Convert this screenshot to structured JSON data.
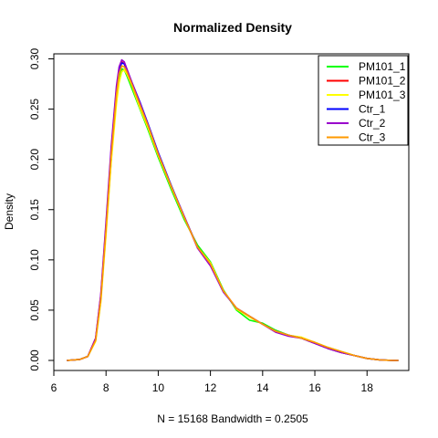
{
  "chart_data": {
    "type": "line",
    "title": "Normalized Density",
    "xlabel": "N = 15168   Bandwidth = 0.2505",
    "ylabel": "Density",
    "xlim": [
      6,
      19.6
    ],
    "ylim": [
      -0.01,
      0.305
    ],
    "x_ticks": [
      "6",
      "8",
      "10",
      "12",
      "14",
      "16",
      "18"
    ],
    "y_ticks": [
      "0.00",
      "0.05",
      "0.10",
      "0.15",
      "0.20",
      "0.25",
      "0.30"
    ],
    "grid": false,
    "legend_position": "top-right",
    "x": [
      6.5,
      7.0,
      7.3,
      7.6,
      7.8,
      8.0,
      8.2,
      8.4,
      8.5,
      8.6,
      8.7,
      8.8,
      9.0,
      9.3,
      9.6,
      10.0,
      10.5,
      11.0,
      11.5,
      12.0,
      12.5,
      13.0,
      13.5,
      14.0,
      14.5,
      15.0,
      15.5,
      16.0,
      16.5,
      17.0,
      17.5,
      18.0,
      18.5,
      19.0,
      19.2
    ],
    "series": [
      {
        "name": "PM101_1",
        "color": "#00ff00",
        "values": [
          0.0,
          0.001,
          0.004,
          0.02,
          0.06,
          0.13,
          0.2,
          0.26,
          0.282,
          0.29,
          0.289,
          0.283,
          0.27,
          0.25,
          0.23,
          0.202,
          0.17,
          0.14,
          0.115,
          0.098,
          0.07,
          0.05,
          0.04,
          0.037,
          0.03,
          0.025,
          0.022,
          0.018,
          0.013,
          0.009,
          0.005,
          0.002,
          0.0005,
          0.0,
          0.0
        ]
      },
      {
        "name": "PM101_2",
        "color": "#ff0000",
        "values": [
          0.0,
          0.001,
          0.004,
          0.022,
          0.065,
          0.135,
          0.21,
          0.27,
          0.29,
          0.297,
          0.295,
          0.288,
          0.274,
          0.254,
          0.233,
          0.205,
          0.173,
          0.143,
          0.113,
          0.096,
          0.069,
          0.052,
          0.044,
          0.036,
          0.029,
          0.025,
          0.022,
          0.017,
          0.012,
          0.008,
          0.005,
          0.002,
          0.0005,
          0.0,
          0.0
        ]
      },
      {
        "name": "PM101_3",
        "color": "#ffff00",
        "values": [
          0.0,
          0.001,
          0.004,
          0.019,
          0.058,
          0.125,
          0.198,
          0.255,
          0.276,
          0.287,
          0.289,
          0.285,
          0.273,
          0.251,
          0.232,
          0.204,
          0.172,
          0.142,
          0.113,
          0.097,
          0.069,
          0.051,
          0.043,
          0.036,
          0.029,
          0.025,
          0.023,
          0.018,
          0.013,
          0.009,
          0.005,
          0.002,
          0.0005,
          0.0,
          0.0
        ]
      },
      {
        "name": "Ctr_1",
        "color": "#0000ff",
        "values": [
          0.0,
          0.001,
          0.004,
          0.021,
          0.062,
          0.133,
          0.207,
          0.268,
          0.288,
          0.296,
          0.295,
          0.289,
          0.276,
          0.257,
          0.236,
          0.207,
          0.174,
          0.143,
          0.113,
          0.095,
          0.068,
          0.052,
          0.044,
          0.036,
          0.029,
          0.025,
          0.022,
          0.017,
          0.012,
          0.008,
          0.005,
          0.002,
          0.0005,
          0.0,
          0.0
        ]
      },
      {
        "name": "Ctr_2",
        "color": "#9900cc",
        "values": [
          0.0,
          0.001,
          0.004,
          0.022,
          0.066,
          0.138,
          0.213,
          0.273,
          0.292,
          0.299,
          0.297,
          0.29,
          0.276,
          0.256,
          0.235,
          0.206,
          0.173,
          0.143,
          0.112,
          0.094,
          0.068,
          0.052,
          0.044,
          0.036,
          0.028,
          0.024,
          0.022,
          0.017,
          0.012,
          0.008,
          0.005,
          0.002,
          0.0005,
          0.0,
          0.0
        ]
      },
      {
        "name": "Ctr_3",
        "color": "#ff9900",
        "values": [
          0.0,
          0.001,
          0.004,
          0.02,
          0.061,
          0.13,
          0.204,
          0.264,
          0.285,
          0.293,
          0.292,
          0.287,
          0.274,
          0.254,
          0.234,
          0.205,
          0.173,
          0.142,
          0.113,
          0.096,
          0.069,
          0.052,
          0.044,
          0.036,
          0.029,
          0.025,
          0.022,
          0.018,
          0.013,
          0.009,
          0.005,
          0.002,
          0.0005,
          0.0,
          0.0
        ]
      }
    ]
  }
}
